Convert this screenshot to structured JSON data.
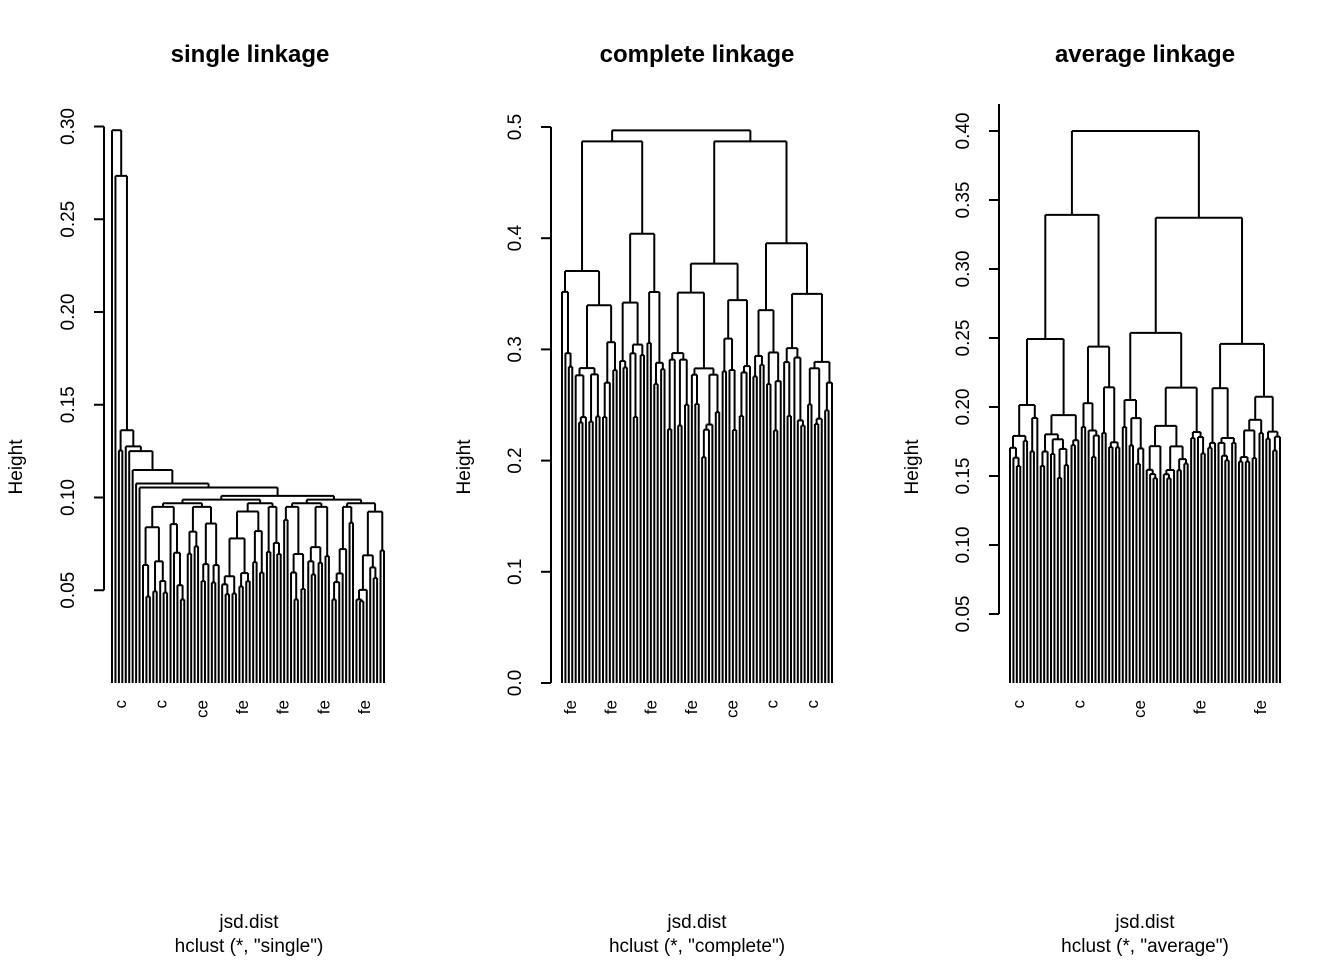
{
  "chart_data": [
    {
      "type": "dendrogram",
      "title": "single linkage",
      "ylabel": "Height",
      "xlabel": "jsd.dist",
      "sub": "hclust (*, \"single\")",
      "ylim": [
        0.0,
        0.3
      ],
      "yticks": [
        0.05,
        0.1,
        0.15,
        0.2,
        0.25,
        0.3
      ],
      "ytick_labels": [
        "0.05",
        "0.10",
        "0.15",
        "0.20",
        "0.25",
        "0.30"
      ],
      "leaf_count": 80,
      "merge_heights_top": [
        0.298,
        0.289,
        0.146,
        0.136,
        0.131,
        0.12,
        0.116,
        0.113,
        0.11,
        0.109,
        0.108,
        0.102
      ],
      "leaf_labels_visible": [
        "c",
        "c",
        "ce",
        "fe",
        "fe",
        "fe",
        "fe"
      ]
    },
    {
      "type": "dendrogram",
      "title": "complete linkage",
      "ylabel": "Height",
      "xlabel": "jsd.dist",
      "sub": "hclust (*, \"complete\")",
      "ylim": [
        0.0,
        0.5
      ],
      "yticks": [
        0.0,
        0.1,
        0.2,
        0.3,
        0.4,
        0.5
      ],
      "ytick_labels": [
        "0.0",
        "0.1",
        "0.2",
        "0.3",
        "0.4",
        "0.5"
      ],
      "leaf_count": 80,
      "merge_heights_top": [
        0.497,
        0.49,
        0.41,
        0.357,
        0.311,
        0.298,
        0.252,
        0.251,
        0.219,
        0.207,
        0.188,
        0.179,
        0.178,
        0.168
      ],
      "leaf_labels_visible": [
        "fe",
        "fe",
        "fe",
        "fe",
        "ce",
        "c",
        "c"
      ]
    },
    {
      "type": "dendrogram",
      "title": "average linkage",
      "ylabel": "Height",
      "xlabel": "jsd.dist",
      "sub": "hclust (*, \"average\")",
      "ylim": [
        0.0,
        0.4
      ],
      "yticks": [
        0.05,
        0.1,
        0.15,
        0.2,
        0.25,
        0.3,
        0.35,
        0.4
      ],
      "ytick_labels": [
        "0.05",
        "0.10",
        "0.15",
        "0.20",
        "0.25",
        "0.30",
        "0.35",
        "0.40"
      ],
      "leaf_count": 80,
      "merge_heights_top": [
        0.4,
        0.371,
        0.255,
        0.215,
        0.193,
        0.186,
        0.171,
        0.164,
        0.161,
        0.148,
        0.143,
        0.141
      ],
      "leaf_labels_visible": [
        "c",
        "c",
        "ce",
        "fe",
        "fe"
      ]
    }
  ]
}
